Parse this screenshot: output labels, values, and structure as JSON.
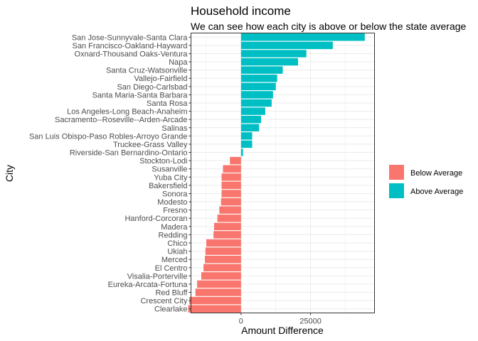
{
  "chart_data": {
    "type": "bar",
    "orientation": "horizontal",
    "title": "Household income",
    "subtitle": "We can see how each city is above or below the state average",
    "xlabel": "Amount Difference",
    "ylabel": "City",
    "xlim": [
      -18000,
      48000
    ],
    "x_ticks": [
      0,
      25000
    ],
    "x_tick_labels": [
      "0",
      "25000"
    ],
    "grid": true,
    "legend_position": "right",
    "legend": [
      {
        "name": "Below Average",
        "color": "#F8766D"
      },
      {
        "name": "Above Average",
        "color": "#00BFC4"
      }
    ],
    "categories": [
      "San Jose-Sunnyvale-Santa Clara",
      "San Francisco-Oakland-Hayward",
      "Oxnard-Thousand Oaks-Ventura",
      "Napa",
      "Santa Cruz-Watsonville",
      "Vallejo-Fairfield",
      "San Diego-Carlsbad",
      "Santa Maria-Santa Barbara",
      "Santa Rosa",
      "Los Angeles-Long Beach-Anaheim",
      "Sacramento--Roseville--Arden-Arcade",
      "Salinas",
      "San Luis Obispo-Paso Robles-Arroyo Grande",
      "Truckee-Grass Valley",
      "Riverside-San Bernardino-Ontario",
      "Stockton-Lodi",
      "Susanville",
      "Yuba City",
      "Bakersfield",
      "Sonora",
      "Modesto",
      "Fresno",
      "Hanford-Corcoran",
      "Madera",
      "Redding",
      "Chico",
      "Ukiah",
      "Merced",
      "El Centro",
      "Visalia-Porterville",
      "Eureka-Arcata-Fortuna",
      "Red Bluff",
      "Crescent City",
      "Clearlake"
    ],
    "values": [
      44500,
      33000,
      23500,
      20500,
      15000,
      13000,
      12500,
      11500,
      11000,
      8700,
      7200,
      6500,
      4000,
      4000,
      700,
      -4000,
      -6500,
      -7000,
      -7000,
      -7000,
      -7200,
      -7800,
      -8500,
      -9700,
      -9900,
      -12500,
      -12800,
      -13000,
      -13500,
      -14300,
      -15800,
      -16400,
      -18600,
      -19000
    ]
  }
}
